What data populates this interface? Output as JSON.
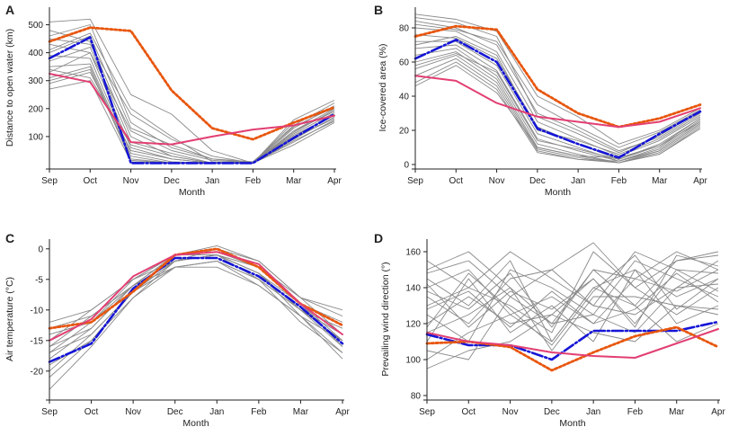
{
  "colors": {
    "background_lines": "#8a8a8a",
    "blue_dashdot": "#1515d6",
    "orange_dotted": "#e8560e",
    "pink_solid": "#e23f72",
    "axis": "#222222"
  },
  "chart_data": [
    {
      "panel_label": "A",
      "type": "line",
      "title": "",
      "xlabel": "Month",
      "ylabel": "Distance to open water (km)",
      "categories": [
        "Sep",
        "Oct",
        "Nov",
        "Dec",
        "Jan",
        "Feb",
        "Mar",
        "Apr"
      ],
      "ylim": [
        0,
        550
      ],
      "yticks": [
        100,
        200,
        300,
        400,
        500
      ],
      "series": [
        {
          "name": "blue",
          "values": [
            380,
            455,
            5,
            5,
            5,
            5,
            95,
            180
          ]
        },
        {
          "name": "orange",
          "values": [
            440,
            490,
            478,
            265,
            130,
            90,
            150,
            205
          ]
        },
        {
          "name": "pink",
          "values": [
            325,
            295,
            80,
            72,
            100,
            125,
            140,
            175
          ]
        }
      ],
      "background_series": [
        [
          510,
          520,
          250,
          180,
          50,
          5,
          150,
          200
        ],
        [
          480,
          440,
          100,
          30,
          5,
          5,
          120,
          190
        ],
        [
          460,
          500,
          150,
          60,
          20,
          5,
          130,
          210
        ],
        [
          430,
          400,
          60,
          20,
          5,
          5,
          110,
          185
        ],
        [
          410,
          470,
          200,
          100,
          10,
          5,
          140,
          220
        ],
        [
          390,
          380,
          40,
          10,
          5,
          5,
          90,
          170
        ],
        [
          370,
          420,
          80,
          40,
          5,
          5,
          100,
          180
        ],
        [
          350,
          360,
          30,
          5,
          5,
          5,
          80,
          160
        ],
        [
          330,
          400,
          120,
          50,
          15,
          5,
          115,
          195
        ],
        [
          310,
          350,
          20,
          5,
          5,
          5,
          70,
          150
        ],
        [
          290,
          330,
          50,
          20,
          5,
          5,
          105,
          175
        ],
        [
          270,
          300,
          10,
          5,
          5,
          5,
          120,
          200
        ],
        [
          450,
          430,
          180,
          90,
          30,
          5,
          160,
          230
        ],
        [
          340,
          310,
          70,
          30,
          5,
          5,
          95,
          165
        ],
        [
          400,
          460,
          130,
          70,
          20,
          10,
          135,
          205
        ],
        [
          300,
          340,
          15,
          5,
          5,
          5,
          85,
          155
        ]
      ]
    },
    {
      "panel_label": "B",
      "type": "line",
      "title": "",
      "xlabel": "Month",
      "ylabel": "Ice-covered area (%)",
      "categories": [
        "Sep",
        "Oct",
        "Nov",
        "Dec",
        "Jan",
        "Feb",
        "Mar",
        "Apr"
      ],
      "ylim": [
        0,
        90
      ],
      "yticks": [
        0,
        20,
        40,
        60,
        80
      ],
      "series": [
        {
          "name": "blue",
          "values": [
            62,
            73,
            60,
            21,
            12,
            4,
            18,
            31
          ]
        },
        {
          "name": "orange",
          "values": [
            75,
            81,
            79,
            44,
            30,
            22,
            27,
            35
          ]
        },
        {
          "name": "pink",
          "values": [
            52,
            49,
            36,
            28,
            25,
            22,
            25,
            33
          ]
        }
      ],
      "background_series": [
        [
          88,
          85,
          78,
          40,
          28,
          12,
          20,
          33
        ],
        [
          84,
          80,
          70,
          30,
          20,
          8,
          16,
          30
        ],
        [
          80,
          78,
          66,
          25,
          15,
          5,
          14,
          28
        ],
        [
          76,
          74,
          62,
          22,
          12,
          3,
          12,
          27
        ],
        [
          72,
          72,
          58,
          18,
          10,
          2,
          10,
          26
        ],
        [
          68,
          70,
          55,
          15,
          8,
          2,
          9,
          25
        ],
        [
          64,
          68,
          52,
          12,
          6,
          1,
          8,
          24
        ],
        [
          60,
          66,
          50,
          10,
          5,
          1,
          7,
          23
        ],
        [
          56,
          64,
          48,
          9,
          4,
          1,
          6,
          22
        ],
        [
          52,
          62,
          46,
          8,
          3,
          1,
          6,
          21
        ],
        [
          48,
          60,
          44,
          7,
          3,
          2,
          8,
          24
        ],
        [
          46,
          58,
          42,
          10,
          5,
          4,
          11,
          27
        ],
        [
          82,
          79,
          72,
          35,
          22,
          10,
          19,
          32
        ],
        [
          70,
          75,
          64,
          20,
          14,
          6,
          15,
          29
        ],
        [
          58,
          65,
          54,
          14,
          9,
          3,
          11,
          25
        ],
        [
          86,
          83,
          75,
          28,
          18,
          7,
          17,
          31
        ]
      ]
    },
    {
      "panel_label": "C",
      "type": "line",
      "title": "",
      "xlabel": "Month",
      "ylabel": "Air temperature (°C)",
      "categories": [
        "Sep",
        "Oct",
        "Nov",
        "Dec",
        "Jan",
        "Feb",
        "Mar",
        "Apr"
      ],
      "ylim": [
        -24,
        1
      ],
      "yticks": [
        0,
        -5,
        -10,
        -15,
        -20
      ],
      "series": [
        {
          "name": "blue",
          "values": [
            -18.5,
            -15.5,
            -6.5,
            -1.5,
            -1.5,
            -4.5,
            -9.5,
            -15.5
          ]
        },
        {
          "name": "orange",
          "values": [
            -13,
            -12,
            -7,
            -1,
            0,
            -3,
            -9,
            -12.5
          ]
        },
        {
          "name": "pink",
          "values": [
            -15,
            -11.5,
            -4.5,
            -1,
            -0.5,
            -2.5,
            -9,
            -14
          ]
        }
      ],
      "background_series": [
        [
          -23,
          -16,
          -8,
          -2,
          -1,
          -4,
          -11,
          -17
        ],
        [
          -20,
          -14,
          -7,
          -3,
          -2,
          -5,
          -10,
          -16
        ],
        [
          -18,
          -13,
          -6,
          -1,
          -1,
          -3,
          -9,
          -15
        ],
        [
          -17,
          -12,
          -5,
          -2,
          0,
          -2,
          -8,
          -14
        ],
        [
          -16,
          -11,
          -6,
          -2,
          -1,
          -4,
          -10,
          -13
        ],
        [
          -15,
          -10,
          -5,
          -1,
          -0.5,
          -3,
          -9,
          -12
        ],
        [
          -14,
          -12,
          -7,
          -3,
          -2,
          -6,
          -11,
          -15
        ],
        [
          -13,
          -11,
          -6,
          -2,
          -1,
          -5,
          -10,
          -14
        ],
        [
          -12,
          -10,
          -5,
          -1,
          0.5,
          -2,
          -8,
          -11
        ],
        [
          -19,
          -15,
          -7,
          -2,
          -1,
          -4,
          -9,
          -16
        ],
        [
          -16,
          -13,
          -6,
          -3,
          -2,
          -5,
          -12,
          -17
        ],
        [
          -14,
          -12,
          -6,
          -1,
          -1,
          -3,
          -8,
          -10
        ],
        [
          -21,
          -15,
          -8,
          -3,
          -3,
          -6,
          -11,
          -18
        ],
        [
          -17,
          -14,
          -7,
          -2,
          -1,
          -4,
          -10,
          -15
        ]
      ]
    },
    {
      "panel_label": "D",
      "type": "line",
      "title": "",
      "xlabel": "Month",
      "ylabel": "Prevailing wind direction (°)",
      "categories": [
        "Sep",
        "Oct",
        "Nov",
        "Dec",
        "Jan",
        "Feb",
        "Mar",
        "Apr"
      ],
      "ylim": [
        80,
        165
      ],
      "yticks": [
        80,
        100,
        120,
        140,
        160
      ],
      "series": [
        {
          "name": "blue",
          "values": [
            114,
            108,
            108,
            100,
            116,
            116,
            116,
            121
          ]
        },
        {
          "name": "orange",
          "values": [
            109,
            110,
            107,
            94,
            104,
            113,
            118,
            107
          ]
        },
        {
          "name": "pink",
          "values": [
            115,
            110,
            108,
            104,
            102,
            101,
            109,
            117
          ]
        }
      ],
      "background_series": [
        [
          150,
          160,
          140,
          120,
          150,
          130,
          155,
          160
        ],
        [
          145,
          130,
          155,
          110,
          140,
          150,
          135,
          145
        ],
        [
          140,
          150,
          125,
          135,
          120,
          145,
          160,
          150
        ],
        [
          135,
          120,
          145,
          150,
          130,
          125,
          140,
          155
        ],
        [
          130,
          140,
          130,
          115,
          160,
          140,
          125,
          140
        ],
        [
          125,
          110,
          150,
          140,
          125,
          155,
          145,
          135
        ],
        [
          120,
          135,
          120,
          125,
          145,
          120,
          150,
          148
        ],
        [
          115,
          125,
          140,
          105,
          135,
          135,
          130,
          125
        ],
        [
          110,
          145,
          115,
          130,
          110,
          150,
          120,
          130
        ],
        [
          105,
          100,
          135,
          120,
          125,
          115,
          140,
          142
        ],
        [
          100,
          115,
          125,
          110,
          140,
          130,
          110,
          120
        ],
        [
          95,
          105,
          110,
          125,
          115,
          110,
          130,
          128
        ],
        [
          155,
          140,
          160,
          145,
          130,
          160,
          150,
          138
        ],
        [
          148,
          155,
          135,
          150,
          165,
          140,
          155,
          158
        ],
        [
          138,
          128,
          148,
          118,
          150,
          145,
          138,
          150
        ],
        [
          128,
          138,
          118,
          138,
          120,
          128,
          148,
          132
        ],
        [
          118,
          148,
          128,
          108,
          138,
          158,
          128,
          145
        ],
        [
          142,
          118,
          138,
          128,
          145,
          118,
          158,
          152
        ]
      ]
    }
  ]
}
